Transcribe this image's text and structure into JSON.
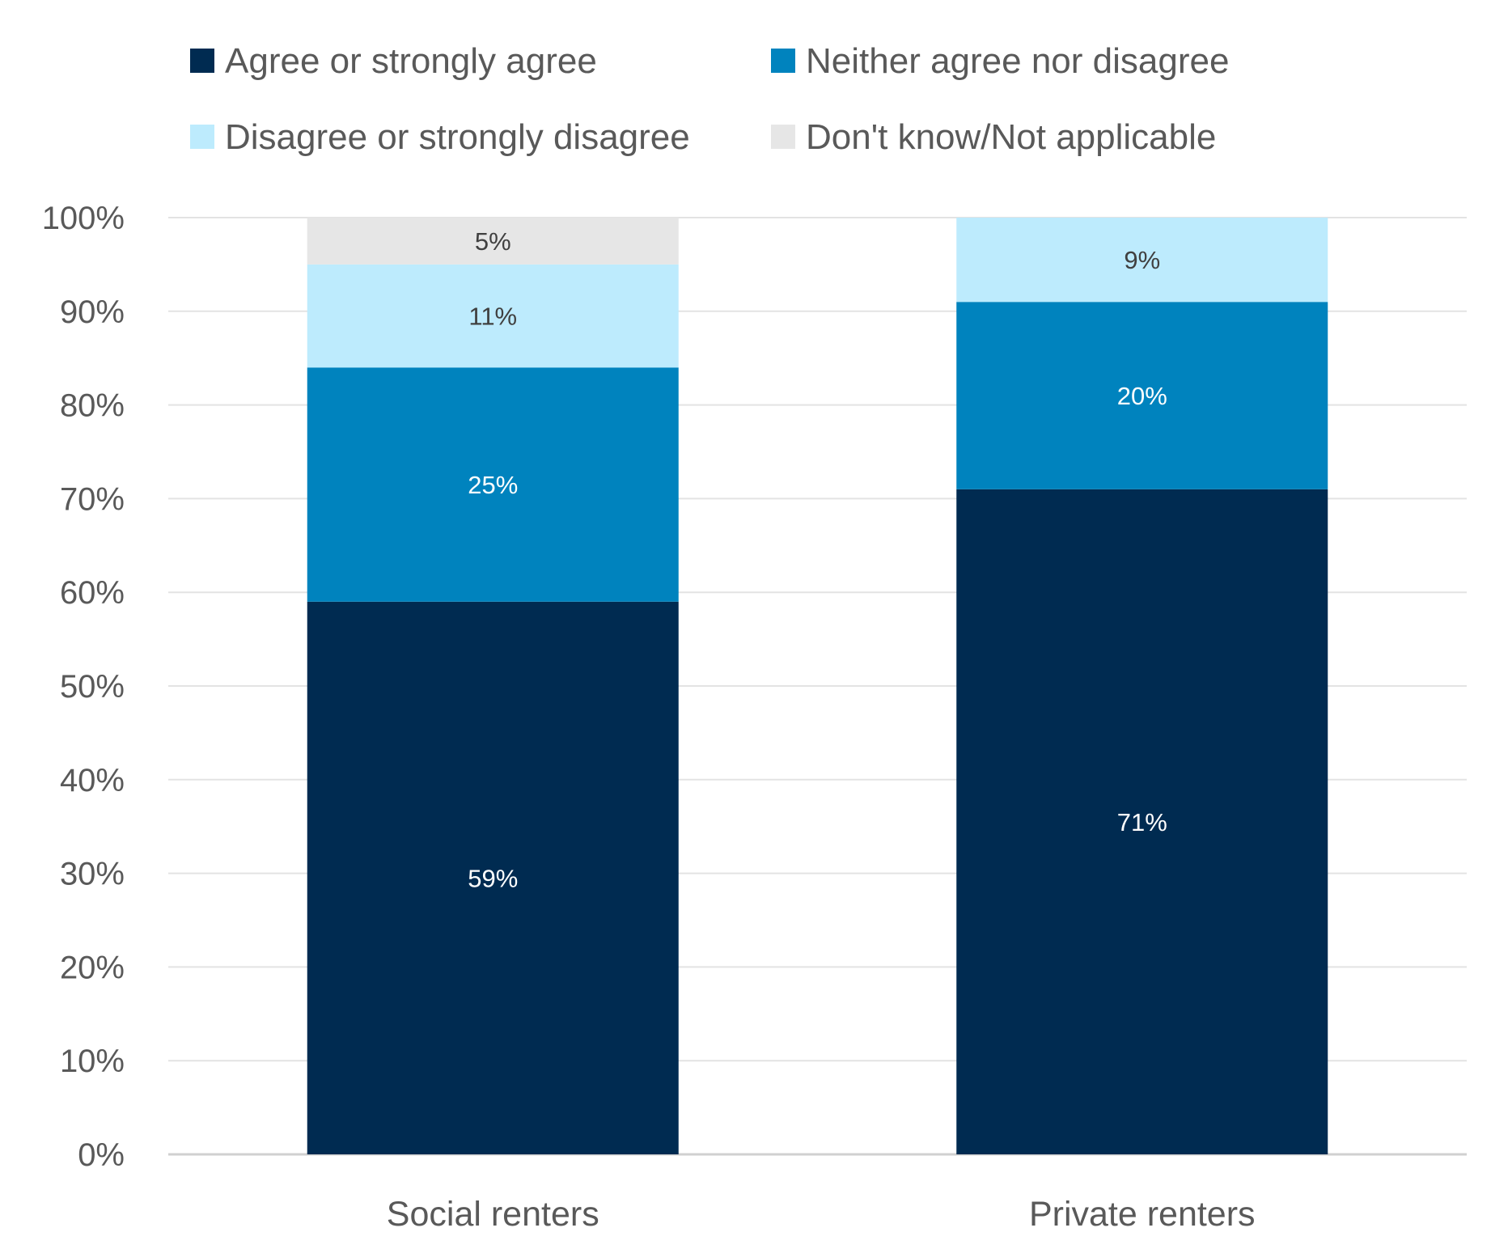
{
  "chart_data": {
    "type": "bar",
    "stacked": true,
    "categories": [
      "Social renters",
      "Private renters"
    ],
    "series": [
      {
        "name": "Agree or strongly agree",
        "values": [
          59,
          71
        ],
        "color": "#002B51",
        "label_color": "#FFFFFF"
      },
      {
        "name": "Neither agree nor disagree",
        "values": [
          25,
          20
        ],
        "color": "#0083BE",
        "label_color": "#FFFFFF"
      },
      {
        "name": "Disagree or strongly disagree",
        "values": [
          11,
          9
        ],
        "color": "#BDEBFD",
        "label_color": "#404040"
      },
      {
        "name": "Don't know/Not applicable",
        "values": [
          5,
          0
        ],
        "color": "#E6E6E6",
        "label_color": "#404040"
      }
    ],
    "yticks": [
      "0%",
      "10%",
      "20%",
      "30%",
      "40%",
      "50%",
      "60%",
      "70%",
      "80%",
      "90%",
      "100%"
    ],
    "ylim": [
      0,
      100
    ],
    "grid": true,
    "legend_placement": "top",
    "title": "",
    "xlabel": "",
    "ylabel": ""
  }
}
